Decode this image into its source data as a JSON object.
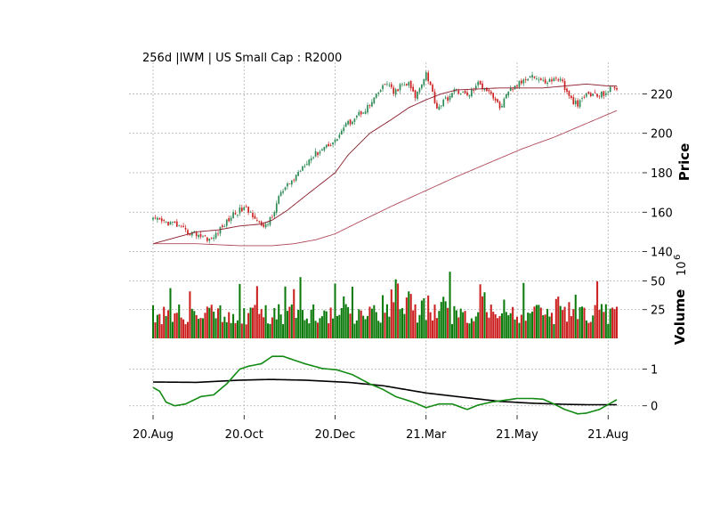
{
  "chart_data": {
    "type": "candlestick",
    "title": "256d |IWM | US Small Cap : R2000",
    "x_tick_labels": [
      "20.Aug",
      "20.Oct",
      "20.Dec",
      "21.Mar",
      "21.May",
      "21.Aug"
    ],
    "x_tick_days": [
      0,
      42,
      84,
      126,
      168,
      210
    ],
    "days": 215,
    "panels": {
      "price": {
        "ylabel": "Price",
        "ylim": [
          138,
          236
        ],
        "yticks": [
          140,
          160,
          180,
          200,
          220
        ],
        "up_color": "#2e8b57",
        "down_color": "#cc2222",
        "ma_colors": [
          "#8b1a2a",
          "#b04a5a"
        ],
        "close_anchors": [
          [
            0,
            156
          ],
          [
            10,
            154
          ],
          [
            15,
            150
          ],
          [
            20,
            149
          ],
          [
            27,
            146
          ],
          [
            30,
            150
          ],
          [
            37,
            159
          ],
          [
            42,
            162
          ],
          [
            47,
            158
          ],
          [
            50,
            152
          ],
          [
            55,
            157
          ],
          [
            58,
            168
          ],
          [
            62,
            173
          ],
          [
            65,
            177
          ],
          [
            70,
            185
          ],
          [
            80,
            194
          ],
          [
            84,
            196
          ],
          [
            88,
            203
          ],
          [
            95,
            210
          ],
          [
            100,
            214
          ],
          [
            105,
            222
          ],
          [
            108,
            226
          ],
          [
            111,
            220
          ],
          [
            114,
            224
          ],
          [
            118,
            225
          ],
          [
            121,
            218
          ],
          [
            124,
            226
          ],
          [
            126,
            231
          ],
          [
            128,
            224
          ],
          [
            131,
            213
          ],
          [
            135,
            217
          ],
          [
            140,
            222
          ],
          [
            145,
            219
          ],
          [
            150,
            225
          ],
          [
            155,
            222
          ],
          [
            160,
            213
          ],
          [
            165,
            222
          ],
          [
            170,
            226
          ],
          [
            174,
            230
          ],
          [
            180,
            226
          ],
          [
            188,
            228
          ],
          [
            192,
            218
          ],
          [
            196,
            214
          ],
          [
            200,
            220
          ],
          [
            206,
            219
          ],
          [
            212,
            223
          ],
          [
            215,
            223
          ]
        ],
        "ma_short_anchors": [
          [
            0,
            144
          ],
          [
            10,
            147
          ],
          [
            20,
            150
          ],
          [
            30,
            151
          ],
          [
            40,
            153
          ],
          [
            50,
            154
          ],
          [
            55,
            156
          ],
          [
            62,
            161
          ],
          [
            70,
            168
          ],
          [
            84,
            180
          ],
          [
            90,
            189
          ],
          [
            100,
            200
          ],
          [
            110,
            207
          ],
          [
            118,
            213
          ],
          [
            126,
            217
          ],
          [
            133,
            220
          ],
          [
            140,
            222
          ],
          [
            160,
            223
          ],
          [
            180,
            223
          ],
          [
            200,
            225
          ],
          [
            210,
            224
          ],
          [
            215,
            224
          ]
        ],
        "ma_long_anchors": [
          [
            0,
            144
          ],
          [
            20,
            144
          ],
          [
            40,
            143
          ],
          [
            55,
            143
          ],
          [
            65,
            144
          ],
          [
            75,
            146
          ],
          [
            84,
            149
          ],
          [
            95,
            155
          ],
          [
            110,
            163
          ],
          [
            126,
            171
          ],
          [
            140,
            178
          ],
          [
            155,
            185
          ],
          [
            170,
            192
          ],
          [
            185,
            198
          ],
          [
            200,
            205
          ],
          [
            215,
            212
          ]
        ]
      },
      "volume": {
        "ylabel": "Volume",
        "exponent_label": "10",
        "exponent_power": "6",
        "ylim": [
          0,
          62
        ],
        "yticks": [
          25,
          50
        ],
        "up_color": "#0a7a0a",
        "down_color": "#cc1f1f"
      },
      "indicator": {
        "ylim": [
          -0.25,
          1.55
        ],
        "yticks": [
          0,
          1
        ],
        "line1_color": "#138a13",
        "line2_color": "#000000",
        "line1_anchors": [
          [
            0,
            0.5
          ],
          [
            3,
            0.4
          ],
          [
            6,
            0.1
          ],
          [
            10,
            0.0
          ],
          [
            15,
            0.05
          ],
          [
            22,
            0.25
          ],
          [
            28,
            0.3
          ],
          [
            34,
            0.6
          ],
          [
            40,
            1.0
          ],
          [
            44,
            1.08
          ],
          [
            50,
            1.15
          ],
          [
            55,
            1.35
          ],
          [
            60,
            1.35
          ],
          [
            65,
            1.25
          ],
          [
            70,
            1.15
          ],
          [
            78,
            1.02
          ],
          [
            85,
            0.98
          ],
          [
            92,
            0.85
          ],
          [
            100,
            0.6
          ],
          [
            106,
            0.45
          ],
          [
            112,
            0.25
          ],
          [
            120,
            0.1
          ],
          [
            126,
            -0.05
          ],
          [
            132,
            0.05
          ],
          [
            138,
            0.05
          ],
          [
            145,
            -0.1
          ],
          [
            150,
            0.02
          ],
          [
            156,
            0.1
          ],
          [
            162,
            0.15
          ],
          [
            168,
            0.2
          ],
          [
            175,
            0.2
          ],
          [
            180,
            0.18
          ],
          [
            185,
            0.05
          ],
          [
            190,
            -0.1
          ],
          [
            196,
            -0.22
          ],
          [
            200,
            -0.2
          ],
          [
            206,
            -0.1
          ],
          [
            212,
            0.1
          ],
          [
            215,
            0.2
          ]
        ],
        "line2_anchors": [
          [
            0,
            0.65
          ],
          [
            20,
            0.64
          ],
          [
            40,
            0.7
          ],
          [
            54,
            0.72
          ],
          [
            70,
            0.7
          ],
          [
            90,
            0.64
          ],
          [
            106,
            0.55
          ],
          [
            126,
            0.35
          ],
          [
            145,
            0.22
          ],
          [
            160,
            0.12
          ],
          [
            175,
            0.07
          ],
          [
            190,
            0.04
          ],
          [
            200,
            0.03
          ],
          [
            215,
            0.03
          ]
        ]
      }
    }
  }
}
